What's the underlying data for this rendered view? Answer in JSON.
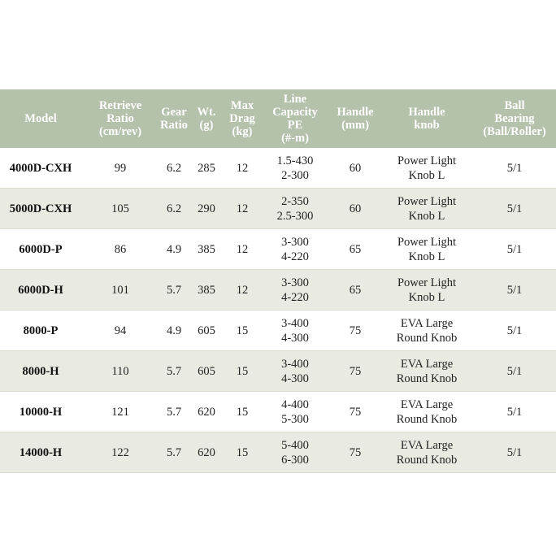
{
  "headers": [
    [
      "Model"
    ],
    [
      "Retrieve",
      "Ratio",
      "(cm/rev)"
    ],
    [
      "Gear",
      "Ratio"
    ],
    [
      "Wt.",
      "(g)"
    ],
    [
      "Max",
      "Drag",
      "(kg)"
    ],
    [
      "Line",
      "Capacity",
      "PE",
      "(#-m)"
    ],
    [
      "Handle",
      "(mm)"
    ],
    [
      "Handle",
      "knob"
    ],
    [
      "Ball",
      "Bearing",
      "(Ball/Roller)"
    ]
  ],
  "rows": [
    {
      "model": "4000D-CXH",
      "retrieve": "99",
      "gear": "6.2",
      "wt": "285",
      "drag": "12",
      "line": [
        "1.5-430",
        "2-300"
      ],
      "handle": "60",
      "knob": [
        "Power Light",
        "Knob L"
      ],
      "bearing": "5/1"
    },
    {
      "model": "5000D-CXH",
      "retrieve": "105",
      "gear": "6.2",
      "wt": "290",
      "drag": "12",
      "line": [
        "2-350",
        "2.5-300"
      ],
      "handle": "60",
      "knob": [
        "Power Light",
        "Knob L"
      ],
      "bearing": "5/1"
    },
    {
      "model": "6000D-P",
      "retrieve": "86",
      "gear": "4.9",
      "wt": "385",
      "drag": "12",
      "line": [
        "3-300",
        "4-220"
      ],
      "handle": "65",
      "knob": [
        "Power Light",
        "Knob L"
      ],
      "bearing": "5/1"
    },
    {
      "model": "6000D-H",
      "retrieve": "101",
      "gear": "5.7",
      "wt": "385",
      "drag": "12",
      "line": [
        "3-300",
        "4-220"
      ],
      "handle": "65",
      "knob": [
        "Power Light",
        "Knob L"
      ],
      "bearing": "5/1"
    },
    {
      "model": "8000-P",
      "retrieve": "94",
      "gear": "4.9",
      "wt": "605",
      "drag": "15",
      "line": [
        "3-400",
        "4-300"
      ],
      "handle": "75",
      "knob": [
        "EVA Large",
        "Round Knob"
      ],
      "bearing": "5/1"
    },
    {
      "model": "8000-H",
      "retrieve": "110",
      "gear": "5.7",
      "wt": "605",
      "drag": "15",
      "line": [
        "3-400",
        "4-300"
      ],
      "handle": "75",
      "knob": [
        "EVA Large",
        "Round Knob"
      ],
      "bearing": "5/1"
    },
    {
      "model": "10000-H",
      "retrieve": "121",
      "gear": "5.7",
      "wt": "620",
      "drag": "15",
      "line": [
        "4-400",
        "5-300"
      ],
      "handle": "75",
      "knob": [
        "EVA Large",
        "Round Knob"
      ],
      "bearing": "5/1"
    },
    {
      "model": "14000-H",
      "retrieve": "122",
      "gear": "5.7",
      "wt": "620",
      "drag": "15",
      "line": [
        "5-400",
        "6-300"
      ],
      "handle": "75",
      "knob": [
        "EVA Large",
        "Round Knob"
      ],
      "bearing": "5/1"
    }
  ],
  "colors": {
    "header_bg": "#b4c2ac",
    "alt_row_bg": "#e9eae2"
  }
}
